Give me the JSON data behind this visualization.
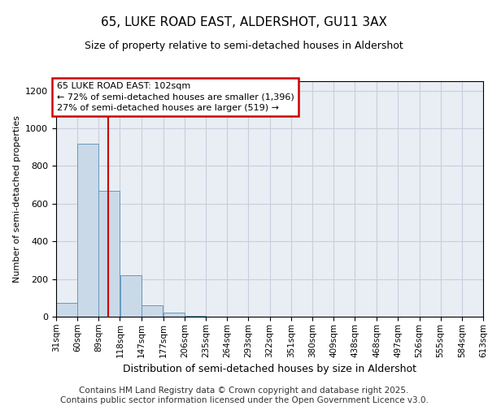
{
  "title1": "65, LUKE ROAD EAST, ALDERSHOT, GU11 3AX",
  "title2": "Size of property relative to semi-detached houses in Aldershot",
  "xlabel": "Distribution of semi-detached houses by size in Aldershot",
  "ylabel": "Number of semi-detached properties",
  "bin_labels": [
    "31sqm",
    "60sqm",
    "89sqm",
    "118sqm",
    "147sqm",
    "177sqm",
    "206sqm",
    "235sqm",
    "264sqm",
    "293sqm",
    "322sqm",
    "351sqm",
    "380sqm",
    "409sqm",
    "438sqm",
    "468sqm",
    "497sqm",
    "526sqm",
    "555sqm",
    "584sqm",
    "613sqm"
  ],
  "bin_edges": [
    31,
    60,
    89,
    118,
    147,
    177,
    206,
    235,
    264,
    293,
    322,
    351,
    380,
    409,
    438,
    468,
    497,
    526,
    555,
    584,
    613
  ],
  "bar_heights": [
    75,
    920,
    670,
    220,
    60,
    20,
    5,
    2,
    0,
    0,
    0,
    0,
    0,
    0,
    0,
    0,
    0,
    0,
    0,
    0
  ],
  "bar_color": "#c9d9e8",
  "bar_edge_color": "#6699bb",
  "vline_color": "#cc0000",
  "vline_x": 102,
  "annotation_line1": "65 LUKE ROAD EAST: 102sqm",
  "annotation_line2": "← 72% of semi-detached houses are smaller (1,396)",
  "annotation_line3": "27% of semi-detached houses are larger (519) →",
  "annotation_box_color": "#ffffff",
  "annotation_box_edge_color": "#cc0000",
  "ylim": [
    0,
    1250
  ],
  "yticks": [
    0,
    200,
    400,
    600,
    800,
    1000,
    1200
  ],
  "grid_color": "#ccccdd",
  "bg_color": "#e8eef4",
  "footer_text": "Contains HM Land Registry data © Crown copyright and database right 2025.\nContains public sector information licensed under the Open Government Licence v3.0.",
  "footer_fontsize": 7.5,
  "title1_fontsize": 11,
  "title2_fontsize": 9
}
